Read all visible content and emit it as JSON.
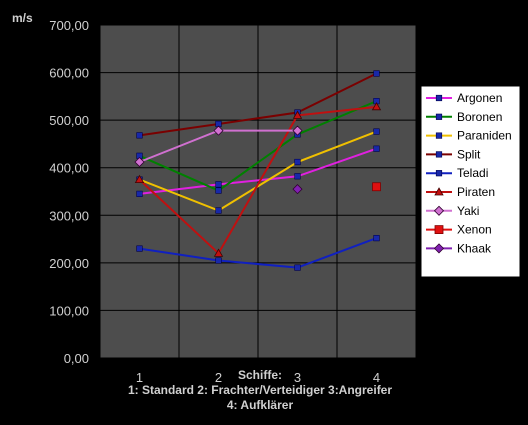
{
  "chart_data": {
    "type": "line",
    "title": "",
    "unit_label": "m/s",
    "x": [
      "1",
      "2",
      "3",
      "4"
    ],
    "ylim": [
      0,
      700
    ],
    "yticks": [
      "0,00",
      "100,00",
      "200,00",
      "300,00",
      "400,00",
      "500,00",
      "600,00",
      "700,00"
    ],
    "grid": true,
    "legend_position": "right",
    "xlabel_lines": [
      "Schiffe:",
      "1: Standard 2: Frachter/Verteidiger 3:Angreifer",
      "4: Aufklärer"
    ],
    "series": [
      {
        "name": "Argonen",
        "color": "#e020e0",
        "marker": "square",
        "values": [
          345,
          365,
          382,
          440
        ]
      },
      {
        "name": "Boronen",
        "color": "#008000",
        "marker": "square",
        "values": [
          425,
          352,
          470,
          540
        ]
      },
      {
        "name": "Paraniden",
        "color": "#f0c000",
        "marker": "square",
        "values": [
          375,
          310,
          412,
          476
        ]
      },
      {
        "name": "Split",
        "color": "#7a0000",
        "marker": "square",
        "values": [
          468,
          492,
          516,
          598
        ]
      },
      {
        "name": "Teladi",
        "color": "#1020c0",
        "marker": "square",
        "values": [
          230,
          205,
          190,
          252
        ]
      },
      {
        "name": "Piraten",
        "color": "#c01010",
        "marker": "triangle",
        "values": [
          375,
          220,
          510,
          528
        ]
      },
      {
        "name": "Yaki",
        "color": "#d070d0",
        "marker": "diamond",
        "values": [
          412,
          478,
          478,
          null
        ]
      },
      {
        "name": "Xenon",
        "color": "#e01010",
        "marker": "square-large",
        "values": [
          null,
          null,
          null,
          360
        ]
      },
      {
        "name": "Khaak",
        "color": "#8020b0",
        "marker": "diamond",
        "values": [
          null,
          null,
          355,
          null
        ]
      }
    ]
  }
}
